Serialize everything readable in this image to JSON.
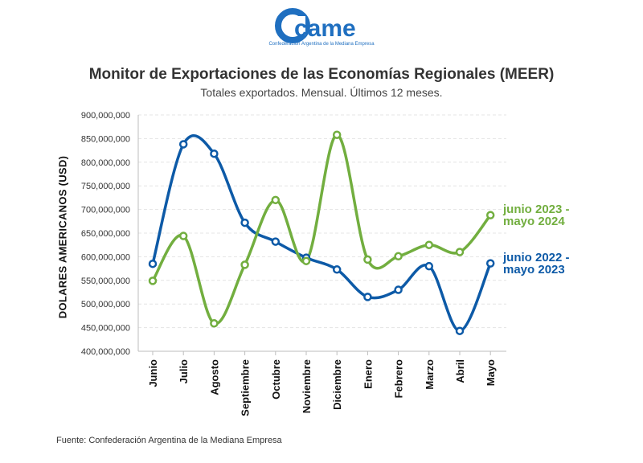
{
  "header": {
    "logo_text": "came",
    "logo_subtitle": "Confederación Argentina de la Mediana Empresa"
  },
  "footer": {
    "source": "Fuente: Confederación Argentina de la Mediana Empresa"
  },
  "colors": {
    "blue": "#0d5aa7",
    "green": "#72ae3f",
    "grid": "#e4e4e4"
  },
  "chart_data": {
    "type": "line",
    "title": "Monitor de Exportaciones de las Economías Regionales (MEER)",
    "subtitle": "Totales exportados. Mensual. Últimos 12 meses.",
    "ylabel": "DOLARES AMERICANOS (USD)",
    "xlabel": "",
    "categories": [
      "Junio",
      "Julio",
      "Agosto",
      "Septiembre",
      "Octubre",
      "Noviembre",
      "Diciembre",
      "Enero",
      "Febrero",
      "Marzo",
      "Abril",
      "Mayo"
    ],
    "ylim": [
      400000000,
      900000000
    ],
    "yticks": [
      "400,000,000",
      "450,000,000",
      "500,000,000",
      "550,000,000",
      "600,000,000",
      "650,000,000",
      "700,000,000",
      "750,000,000",
      "800,000,000",
      "850,000,000",
      "900,000,000"
    ],
    "grid": true,
    "series": [
      {
        "name": "junio 2022 - mayo 2023",
        "label_lines": [
          "junio 2022 -",
          "mayo 2023"
        ],
        "color": "#0d5aa7",
        "values": [
          585000000,
          838000000,
          818000000,
          672000000,
          632000000,
          598000000,
          573000000,
          515000000,
          530000000,
          580000000,
          443000000,
          586000000
        ]
      },
      {
        "name": "junio 2023 - mayo 2024",
        "label_lines": [
          "junio 2023 -",
          "mayo 2024"
        ],
        "color": "#72ae3f",
        "values": [
          549000000,
          644000000,
          459000000,
          583000000,
          720000000,
          591000000,
          858000000,
          594000000,
          601000000,
          625000000,
          610000000,
          688000000
        ]
      }
    ]
  }
}
